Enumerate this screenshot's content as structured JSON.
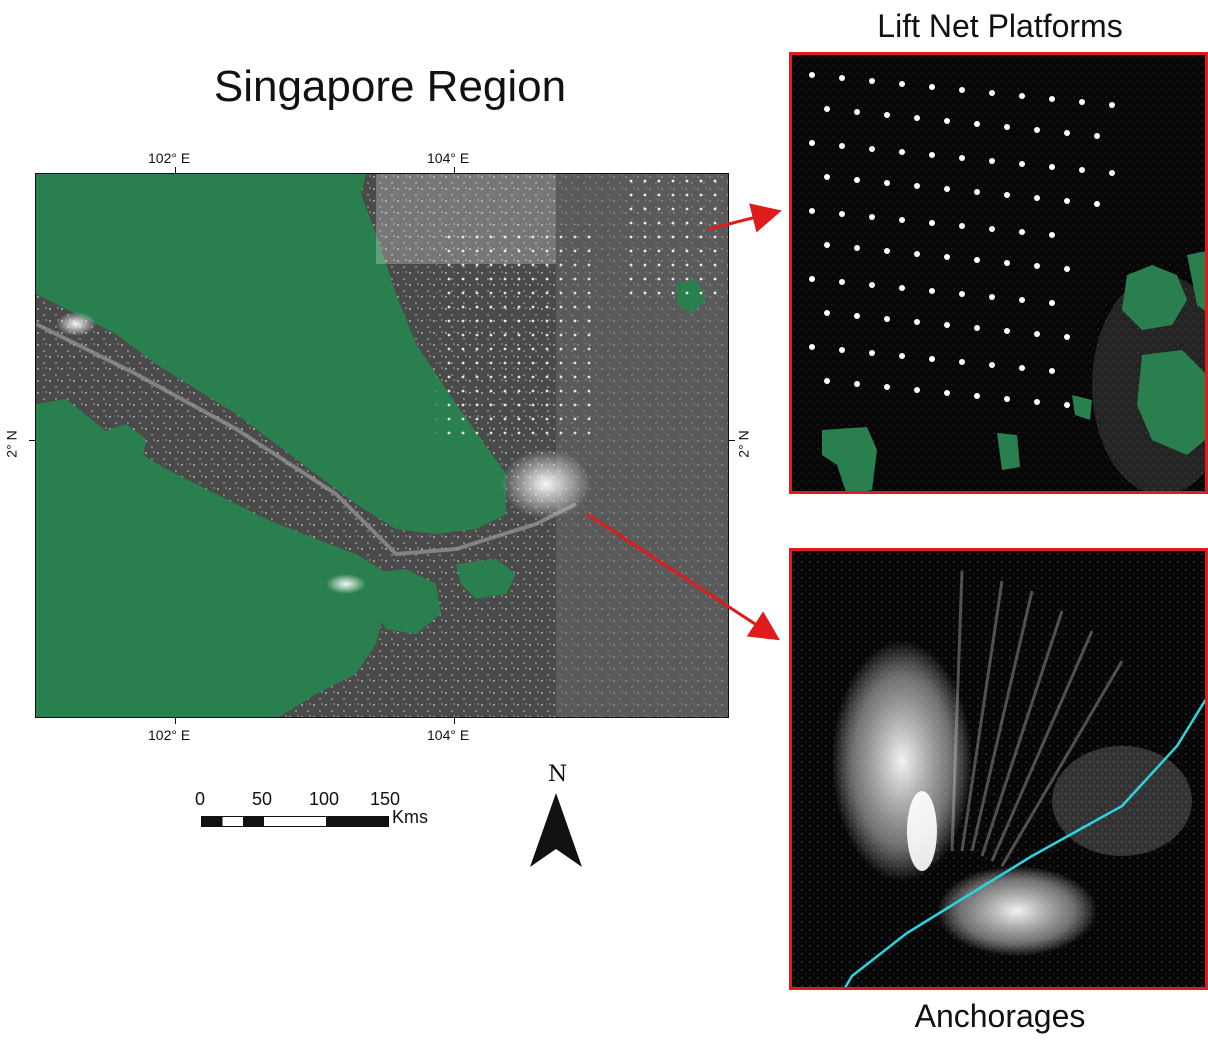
{
  "title": "Singapore Region",
  "main_map": {
    "top_ticks": [
      "102° E",
      "104° E"
    ],
    "bottom_ticks": [
      "102° E",
      "104° E"
    ],
    "left_tick": "2° N",
    "right_tick": "2° N",
    "colors": {
      "land": "#2a7f4f",
      "water": "#4a4a4a",
      "detections": "#ffffff",
      "frame": "#111111"
    }
  },
  "scale_bar": {
    "labels": [
      "0",
      "50",
      "100",
      "150"
    ],
    "unit": "Kms"
  },
  "north_arrow": {
    "label": "N"
  },
  "inset_top": {
    "title": "Lift Net Platforms",
    "border_color": "#e01b1b"
  },
  "inset_bottom": {
    "title": "Anchorages",
    "border_color": "#e01b1b",
    "route_color": "#2ad4e0"
  },
  "arrows": {
    "color": "#e01b1b"
  }
}
